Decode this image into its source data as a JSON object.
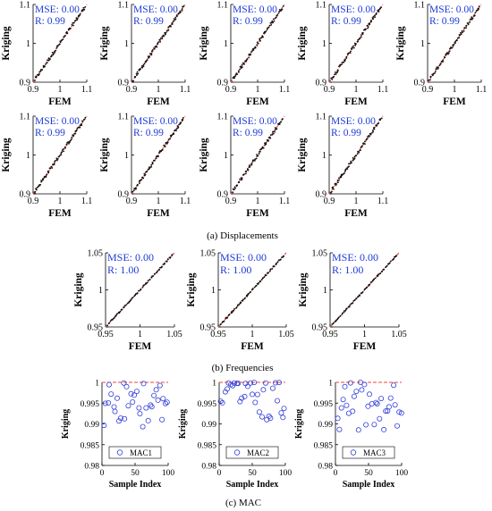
{
  "captions": {
    "a": "(a) Displacements",
    "b": "(b) Frequencies",
    "c": "(c) MAC"
  },
  "labels": {
    "ylabel": "Kriging",
    "xlabel_fem": "FEM",
    "xlabel_mac": "Sample Index"
  },
  "colors": {
    "fit_line": "#e8473d",
    "points": "#111111",
    "stats_text": "#1f3bd6",
    "mac_points": "#3340d8",
    "mac_ref": "#e8473d"
  },
  "chart_data": [
    {
      "id": "disp-1",
      "type": "scatter",
      "xlabel": "FEM",
      "ylabel": "Kriging",
      "xlim": [
        0.9,
        1.1
      ],
      "ylim": [
        0.9,
        1.1
      ],
      "xticks": [
        "0.9",
        "1",
        "1.1"
      ],
      "yticks": [
        "0.9",
        "1",
        "1.1"
      ],
      "stats": [
        "MSE: 0.00",
        "R: 0.99"
      ],
      "fit": "y=x"
    },
    {
      "id": "disp-2",
      "type": "scatter",
      "xlabel": "FEM",
      "ylabel": "Kriging",
      "xlim": [
        0.9,
        1.1
      ],
      "ylim": [
        0.9,
        1.1
      ],
      "xticks": [
        "0.9",
        "1",
        "1.1"
      ],
      "yticks": [
        "0.9",
        "1",
        "1.1"
      ],
      "stats": [
        "MSE: 0.00",
        "R: 0.99"
      ],
      "fit": "y=x"
    },
    {
      "id": "disp-3",
      "type": "scatter",
      "xlabel": "FEM",
      "ylabel": "Kriging",
      "xlim": [
        0.9,
        1.1
      ],
      "ylim": [
        0.9,
        1.1
      ],
      "xticks": [
        "0.9",
        "1",
        "1.1"
      ],
      "yticks": [
        "0.9",
        "1",
        "1.1"
      ],
      "stats": [
        "MSE: 0.00",
        "R: 0.99"
      ],
      "fit": "y=x"
    },
    {
      "id": "disp-4",
      "type": "scatter",
      "xlabel": "FEM",
      "ylabel": "Kriging",
      "xlim": [
        0.9,
        1.1
      ],
      "ylim": [
        0.9,
        1.1
      ],
      "xticks": [
        "0.9",
        "1",
        "1.1"
      ],
      "yticks": [
        "0.9",
        "1",
        "1.1"
      ],
      "stats": [
        "MSE: 0.00",
        "R: 0.99"
      ],
      "fit": "y=x"
    },
    {
      "id": "disp-5",
      "type": "scatter",
      "xlabel": "FEM",
      "ylabel": "Kriging",
      "xlim": [
        0.9,
        1.1
      ],
      "ylim": [
        0.9,
        1.1
      ],
      "xticks": [
        "0.9",
        "1",
        "1.1"
      ],
      "yticks": [
        "0.9",
        "1",
        "1.1"
      ],
      "stats": [
        "MSE: 0.00",
        "R: 0.99"
      ],
      "fit": "y=x"
    },
    {
      "id": "disp-6",
      "type": "scatter",
      "xlabel": "FEM",
      "ylabel": "Kriging",
      "xlim": [
        0.9,
        1.1
      ],
      "ylim": [
        0.9,
        1.1
      ],
      "xticks": [
        "0.9",
        "1",
        "1.1"
      ],
      "yticks": [
        "0.9",
        "1",
        "1.1"
      ],
      "stats": [
        "MSE: 0.00",
        "R: 0.99"
      ],
      "fit": "y=x"
    },
    {
      "id": "disp-7",
      "type": "scatter",
      "xlabel": "FEM",
      "ylabel": "Kriging",
      "xlim": [
        0.9,
        1.1
      ],
      "ylim": [
        0.9,
        1.1
      ],
      "xticks": [
        "0.9",
        "1",
        "1.1"
      ],
      "yticks": [
        "0.9",
        "1",
        "1.1"
      ],
      "stats": [
        "MSE: 0.00",
        "R: 0.99"
      ],
      "fit": "y=x"
    },
    {
      "id": "disp-8",
      "type": "scatter",
      "xlabel": "FEM",
      "ylabel": "Kriging",
      "xlim": [
        0.9,
        1.1
      ],
      "ylim": [
        0.9,
        1.1
      ],
      "xticks": [
        "0.9",
        "1",
        "1.1"
      ],
      "yticks": [
        "0.9",
        "1",
        "1.1"
      ],
      "stats": [
        "MSE: 0.00",
        "R: 0.99"
      ],
      "fit": "y=x"
    },
    {
      "id": "disp-9",
      "type": "scatter",
      "xlabel": "FEM",
      "ylabel": "Kriging",
      "xlim": [
        0.9,
        1.1
      ],
      "ylim": [
        0.9,
        1.1
      ],
      "xticks": [
        "0.9",
        "1",
        "1.1"
      ],
      "yticks": [
        "0.9",
        "1",
        "1.1"
      ],
      "stats": [
        "MSE: 0.00",
        "R: 0.99"
      ],
      "fit": "y=x"
    },
    {
      "id": "freq-1",
      "type": "scatter",
      "xlabel": "FEM",
      "ylabel": "Kriging",
      "xlim": [
        0.95,
        1.05
      ],
      "ylim": [
        0.95,
        1.05
      ],
      "xticks": [
        "0.95",
        "1",
        "1.05"
      ],
      "yticks": [
        "0.95",
        "1",
        "1.05"
      ],
      "stats": [
        "MSE: 0.00",
        "R: 1.00"
      ],
      "fit": "y=x"
    },
    {
      "id": "freq-2",
      "type": "scatter",
      "xlabel": "FEM",
      "ylabel": "Kriging",
      "xlim": [
        0.95,
        1.05
      ],
      "ylim": [
        0.95,
        1.05
      ],
      "xticks": [
        "0.95",
        "1",
        "1.05"
      ],
      "yticks": [
        "0.95",
        "1",
        "1.05"
      ],
      "stats": [
        "MSE: 0.00",
        "R: 1.00"
      ],
      "fit": "y=x"
    },
    {
      "id": "freq-3",
      "type": "scatter",
      "xlabel": "FEM",
      "ylabel": "Kriging",
      "xlim": [
        0.95,
        1.05
      ],
      "ylim": [
        0.95,
        1.05
      ],
      "xticks": [
        "0.95",
        "1",
        "1.05"
      ],
      "yticks": [
        "0.95",
        "1",
        "1.05"
      ],
      "stats": [
        "MSE: 0.00",
        "R: 1.00"
      ],
      "fit": "y=x"
    },
    {
      "id": "mac-1",
      "type": "scatter",
      "xlabel": "Sample Index",
      "ylabel": "Kriging",
      "xlim": [
        0,
        100
      ],
      "ylim": [
        0.98,
        1
      ],
      "xticks": [
        "0",
        "50",
        "100"
      ],
      "yticks": [
        "0.98",
        "0.985",
        "0.99",
        "0.995",
        "1"
      ],
      "legend": "MAC1",
      "legend_position": "bottom-center",
      "reference_line": 1
    },
    {
      "id": "mac-2",
      "type": "scatter",
      "xlabel": "Sample Index",
      "ylabel": "Kriging",
      "xlim": [
        0,
        100
      ],
      "ylim": [
        0.98,
        1
      ],
      "xticks": [
        "0",
        "50",
        "100"
      ],
      "yticks": [
        "0.98",
        "0.985",
        "0.99",
        "0.995",
        "1"
      ],
      "legend": "MAC2",
      "legend_position": "bottom-center",
      "reference_line": 1
    },
    {
      "id": "mac-3",
      "type": "scatter",
      "xlabel": "Sample Index",
      "ylabel": "Kriging",
      "xlim": [
        0,
        100
      ],
      "ylim": [
        0.98,
        1
      ],
      "xticks": [
        "0",
        "50",
        "100"
      ],
      "yticks": [
        "0.98",
        "0.985",
        "0.99",
        "0.995",
        "1"
      ],
      "legend": "MAC3",
      "legend_position": "bottom-center",
      "reference_line": 1
    }
  ]
}
